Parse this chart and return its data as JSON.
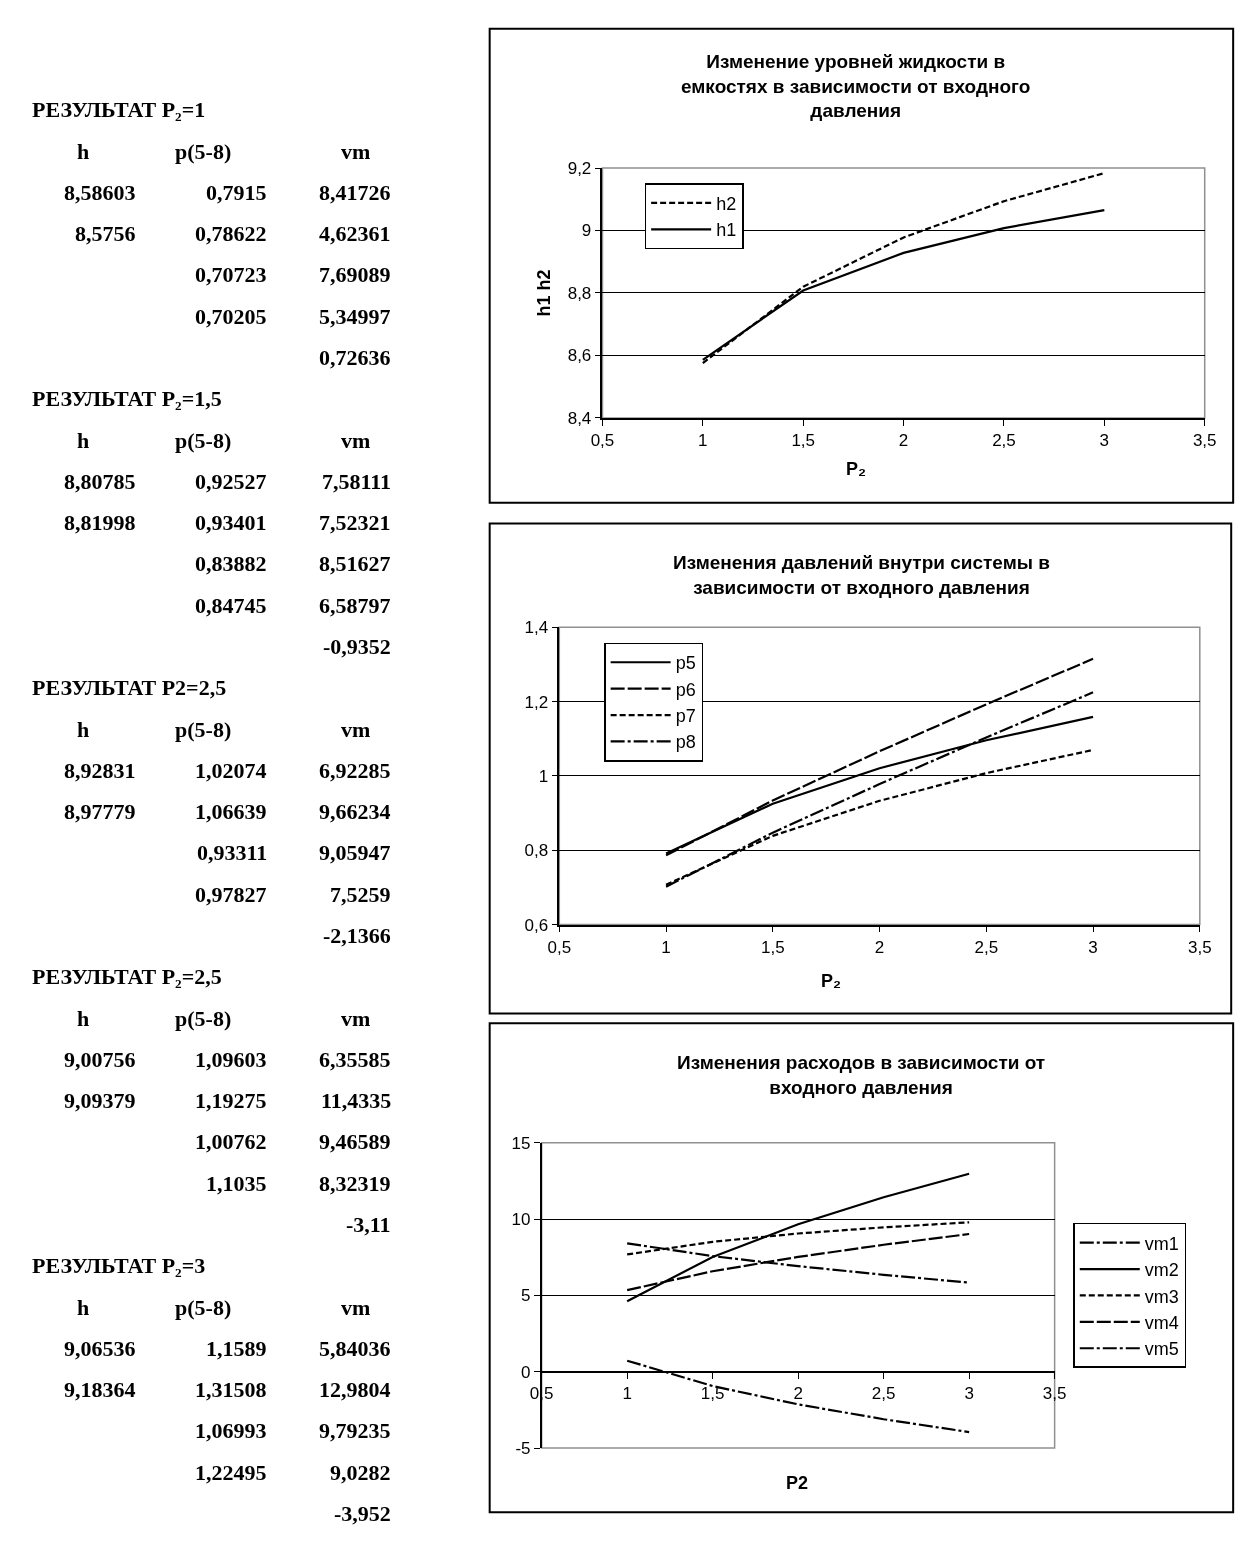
{
  "chart_data": [
    {
      "type": "other",
      "annotations": [
        "РЕЗУЛЬТАТ P₂=1",
        "h\tp(5-8)\tvm",
        "8,58603\t0,7915\t8,41726",
        "8,5756\t0,78622\t4,62361",
        "\t0,70723\t7,69089",
        "\t0,70205\t5,34997",
        "\t\t0,72636",
        "РЕЗУЛЬТАТ P₂=1,5",
        "h\tp(5-8)\tvm",
        "8,80785\t0,92527\t7,58111",
        "8,81998\t0,93401\t7,52321",
        "\t0,83882\t8,51627",
        "\t0,84745\t6,58797",
        "\t\t-0,9352",
        "РЕЗУЛЬТАТ P2=2,5",
        "h\tp(5-8)\tvm",
        "8,92831\t1,02074\t6,92285",
        "8,97779\t1,06639\t9,66234",
        "\t0,93311\t9,05947",
        "\t0,97827\t7,5259",
        "\t\t-2,1366",
        "РЕЗУЛЬТАТ P₂=2,5",
        "h\tp(5-8)\tvm",
        "9,00756\t1,09603\t6,35585",
        "9,09379\t1,19275\t11,4335",
        "\t1,00762\t9,46589",
        "\t1,1035\t8,32319",
        "\t\t-3,11",
        "РЕЗУЛЬТАТ P₂=3",
        "h\tp(5-8)\tvm",
        "9,06536\t1,1589\t5,84036",
        "9,18364\t1,31508\t12,9804",
        "\t1,06993\t9,79235",
        "\t1,22495\t9,0282",
        "\t\t-3,952"
      ]
    },
    {
      "type": "line",
      "title": "Изменение уровней жидкости в емкостях в зависимости от входного давления",
      "xlabel": "P₂",
      "ylabel": "h1 h2",
      "x": [
        1,
        1.5,
        2,
        2.5,
        3
      ],
      "series": [
        {
          "name": "h2",
          "color": "#000000",
          "line_style": "dotted",
          "values": [
            8.5756,
            8.81998,
            8.97779,
            9.09379,
            9.18364
          ]
        },
        {
          "name": "h1",
          "color": "#000000",
          "line_style": "solid",
          "values": [
            8.58603,
            8.80785,
            8.92831,
            9.00756,
            9.06536
          ]
        }
      ],
      "xlim": [
        0.5,
        3.5
      ],
      "xticks": [
        {
          "value": 0.5,
          "label": "0,5"
        },
        1,
        {
          "value": 1.5,
          "label": "1,5"
        },
        2,
        {
          "value": 2.5,
          "label": "2,5"
        },
        3,
        {
          "value": 3.5,
          "label": "3,5"
        }
      ],
      "ylim": [
        8.4,
        9.2
      ],
      "yticks": [
        {
          "value": 8.4,
          "label": "8,4"
        },
        {
          "value": 8.6,
          "label": "8,6"
        },
        {
          "value": 8.8,
          "label": "8,8"
        },
        9,
        {
          "value": 9.2,
          "label": "9,2"
        }
      ],
      "grid": "y",
      "legend": "top left"
    },
    {
      "type": "line",
      "title": "Изменения давлений внутри системы в зависимости от входного давления",
      "xlabel": "P₂",
      "x": [
        1,
        1.5,
        2,
        2.5,
        3
      ],
      "series": [
        {
          "name": "p5",
          "color": "#000000",
          "line_style": "solid",
          "values": [
            0.7915,
            0.92527,
            1.02074,
            1.09603,
            1.1589
          ]
        },
        {
          "name": "p6",
          "color": "#000000",
          "line_style": "dashed",
          "values": [
            0.78622,
            0.93401,
            1.06639,
            1.19275,
            1.31508
          ]
        },
        {
          "name": "p7",
          "color": "#000000",
          "line_style": "dotted",
          "values": [
            0.70723,
            0.83882,
            0.93311,
            1.00762,
            1.06993
          ]
        },
        {
          "name": "p8",
          "color": "#000000",
          "line_style": "dashdot",
          "values": [
            0.70205,
            0.84745,
            0.97827,
            1.1035,
            1.22495
          ]
        }
      ],
      "xlim": [
        0.5,
        3.5
      ],
      "xticks": [
        {
          "value": 0.5,
          "label": "0,5"
        },
        1,
        {
          "value": 1.5,
          "label": "1,5"
        },
        2,
        {
          "value": 2.5,
          "label": "2,5"
        },
        3,
        {
          "value": 3.5,
          "label": "3,5"
        }
      ],
      "ylim": [
        0.6,
        1.4
      ],
      "yticks": [
        {
          "value": 0.6,
          "label": "0,6"
        },
        {
          "value": 0.8,
          "label": "0,8"
        },
        1,
        {
          "value": 1.2,
          "label": "1,2"
        },
        {
          "value": 1.4,
          "label": "1,4"
        }
      ],
      "grid": "y",
      "legend": "top left"
    },
    {
      "type": "line",
      "title": "Изменения расходов в зависимости от входного давления",
      "xlabel": "P2",
      "x": [
        1,
        1.5,
        2,
        2.5,
        3
      ],
      "series": [
        {
          "name": "vm1",
          "color": "#000000",
          "line_style": "dashdot",
          "values": [
            8.41726,
            7.58111,
            6.92285,
            6.35585,
            5.84036
          ]
        },
        {
          "name": "vm2",
          "color": "#000000",
          "line_style": "solid",
          "values": [
            4.62361,
            7.52321,
            9.66234,
            11.4335,
            12.9804
          ]
        },
        {
          "name": "vm3",
          "color": "#000000",
          "line_style": "dotted",
          "values": [
            7.69089,
            8.51627,
            9.05947,
            9.46589,
            9.79235
          ]
        },
        {
          "name": "vm4",
          "color": "#000000",
          "line_style": "dashed",
          "values": [
            5.34997,
            6.58797,
            7.5259,
            8.32319,
            9.0282
          ]
        },
        {
          "name": "vm5",
          "color": "#000000",
          "line_style": "dashdot",
          "values": [
            0.72636,
            -0.9352,
            -2.1366,
            -3.11,
            -3.952
          ]
        }
      ],
      "xlim": [
        0.5,
        3.5
      ],
      "xticks": [
        {
          "value": 0.5,
          "label": "0,5"
        },
        1,
        {
          "value": 1.5,
          "label": "1,5"
        },
        2,
        {
          "value": 2.5,
          "label": "2,5"
        },
        3,
        {
          "value": 3.5,
          "label": "3,5"
        }
      ],
      "ylim": [
        -5,
        15
      ],
      "yticks": [
        -5,
        0,
        5,
        10,
        15
      ],
      "grid": "y",
      "legend": "right"
    }
  ]
}
